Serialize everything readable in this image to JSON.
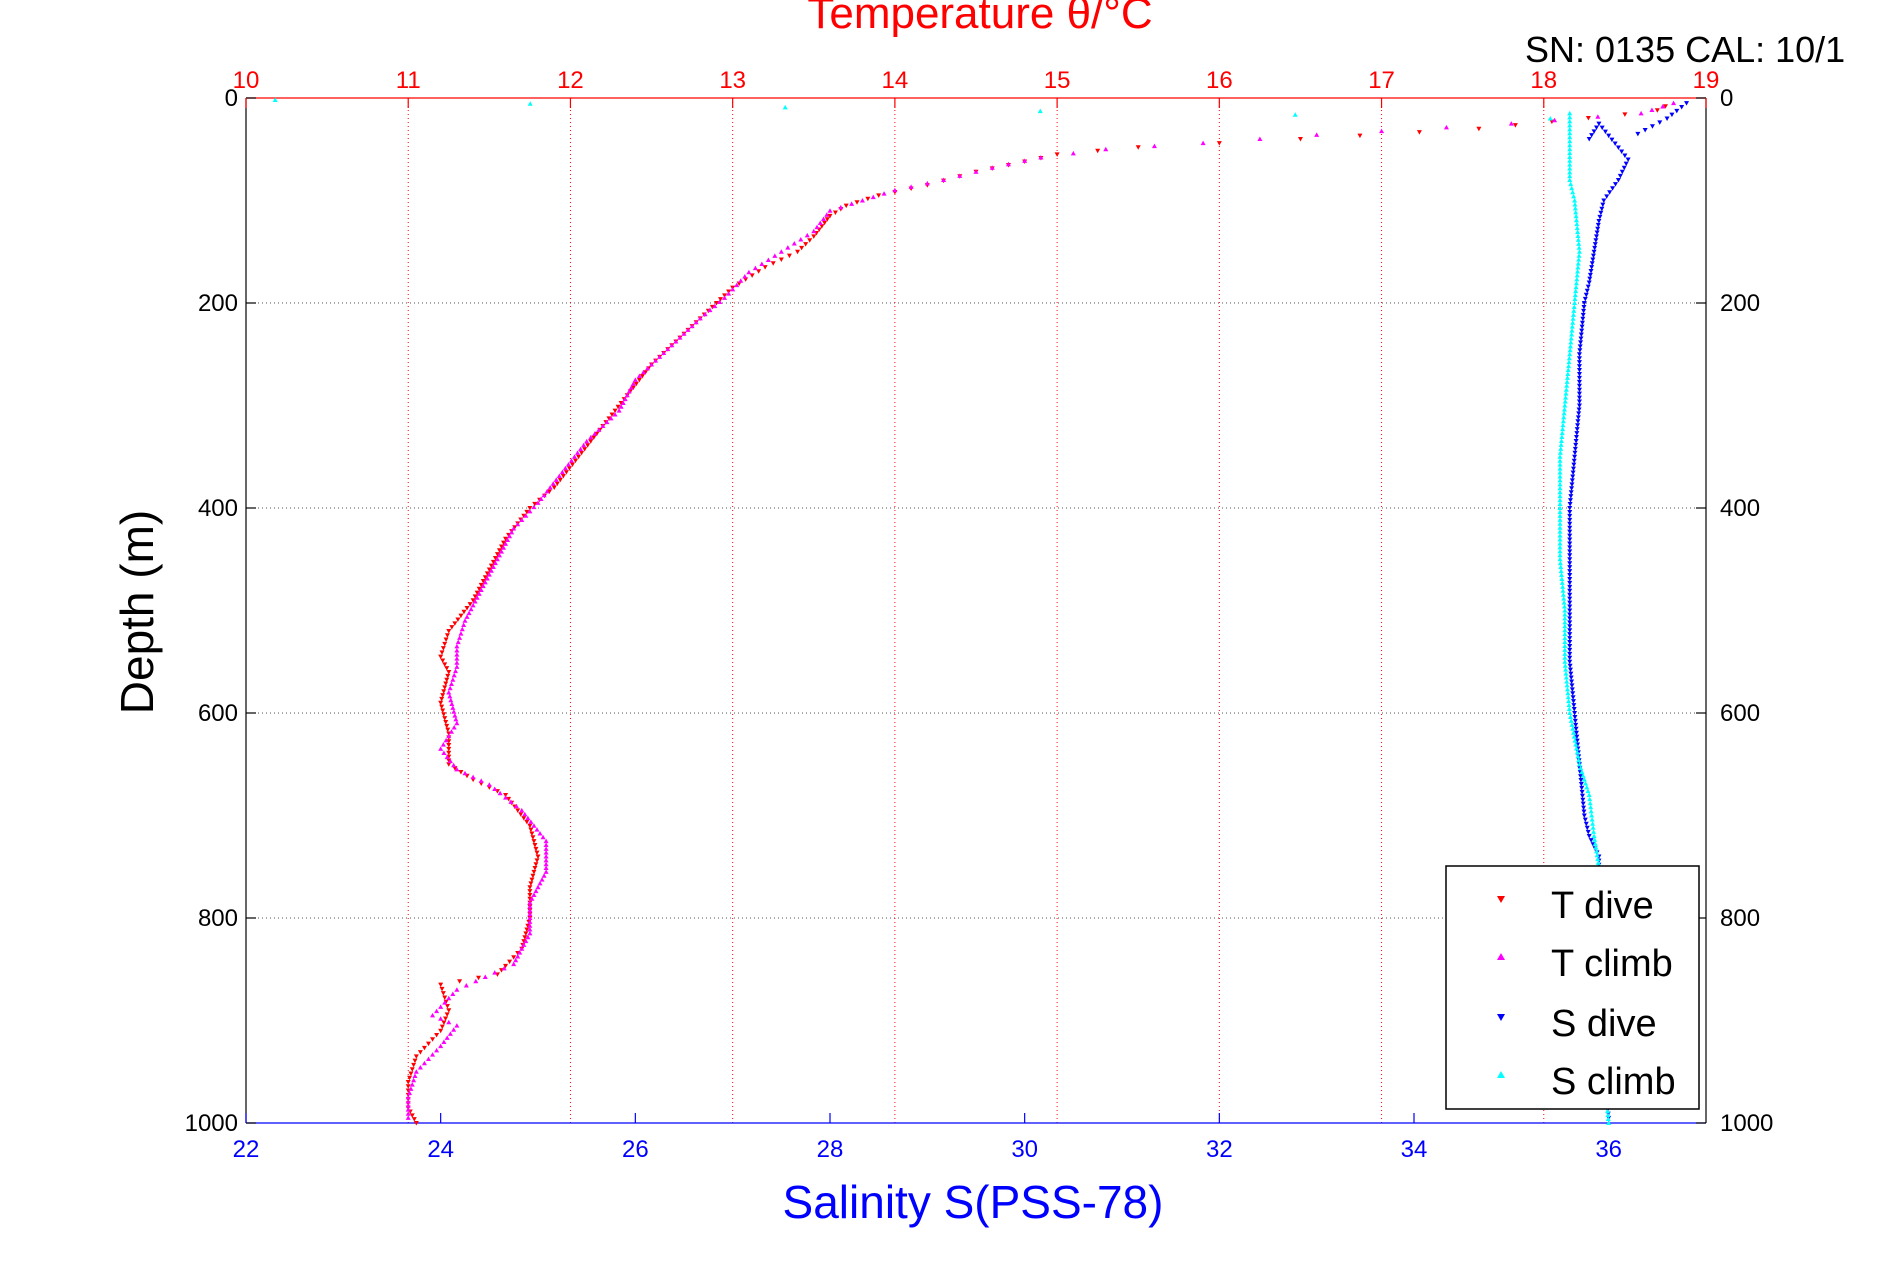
{
  "chart_data": {
    "type": "scatter",
    "title": "Temperature θ/°C",
    "corner_label": "SN: 0135  CAL: 10/1",
    "ylabel": "Depth (m)",
    "xlabel": "Salinity S(PSS-78)",
    "y_axis": {
      "min": 0,
      "max": 1000,
      "reversed": true,
      "ticks": [
        0,
        200,
        400,
        600,
        800,
        1000
      ],
      "tick_labels": [
        "0",
        "200",
        "400",
        "600",
        "800",
        "1000"
      ]
    },
    "temperature_axis": {
      "position": "top",
      "min": 10,
      "max": 19,
      "ticks": [
        10,
        11,
        12,
        13,
        14,
        15,
        16,
        17,
        18,
        19
      ],
      "tick_labels": [
        "10",
        "11",
        "12",
        "13",
        "14",
        "15",
        "16",
        "17",
        "18",
        "19"
      ],
      "grid": "vertical dotted",
      "color": "#ff0000"
    },
    "salinity_axis": {
      "position": "bottom",
      "min": 22,
      "max": 37,
      "ticks": [
        22,
        24,
        26,
        28,
        30,
        32,
        34,
        36
      ],
      "tick_labels": [
        "22",
        "24",
        "26",
        "28",
        "30",
        "32",
        "34",
        "36"
      ],
      "color": "#0000ff"
    },
    "grid": {
      "horizontal": true,
      "vertical": true
    },
    "legend": {
      "placement": "bottom-right",
      "entries": [
        {
          "label": "T dive",
          "color": "#ff0000",
          "marker": "down-triangle"
        },
        {
          "label": "T climb",
          "color": "#ff00ff",
          "marker": "up-triangle"
        },
        {
          "label": "S dive",
          "color": "#0000ff",
          "marker": "down-triangle"
        },
        {
          "label": "S climb",
          "color": "#00ffff",
          "marker": "up-triangle"
        }
      ]
    },
    "series": [
      {
        "name": "T dive",
        "axis": "temperature",
        "color": "#ff0000",
        "points": [
          [
            18.75,
            8
          ],
          [
            18.7,
            12
          ],
          [
            18.5,
            16
          ],
          [
            17.6,
            30
          ],
          [
            16.5,
            40
          ],
          [
            15.5,
            48
          ],
          [
            15.0,
            55
          ],
          [
            14.8,
            62
          ],
          [
            14.5,
            72
          ],
          [
            14.2,
            85
          ],
          [
            13.9,
            95
          ],
          [
            13.7,
            105
          ],
          [
            13.6,
            115
          ],
          [
            13.55,
            125
          ],
          [
            13.5,
            135
          ],
          [
            13.4,
            150
          ],
          [
            13.2,
            165
          ],
          [
            13.0,
            185
          ],
          [
            12.9,
            200
          ],
          [
            12.7,
            230
          ],
          [
            12.5,
            260
          ],
          [
            12.35,
            290
          ],
          [
            12.2,
            320
          ],
          [
            12.05,
            350
          ],
          [
            11.9,
            380
          ],
          [
            11.75,
            400
          ],
          [
            11.6,
            430
          ],
          [
            11.5,
            460
          ],
          [
            11.4,
            490
          ],
          [
            11.25,
            520
          ],
          [
            11.2,
            545
          ],
          [
            11.25,
            560
          ],
          [
            11.2,
            590
          ],
          [
            11.25,
            620
          ],
          [
            11.25,
            650
          ],
          [
            11.4,
            665
          ],
          [
            11.6,
            680
          ],
          [
            11.75,
            710
          ],
          [
            11.8,
            740
          ],
          [
            11.75,
            770
          ],
          [
            11.75,
            800
          ],
          [
            11.7,
            830
          ],
          [
            11.55,
            855
          ],
          [
            11.2,
            865
          ],
          [
            11.25,
            890
          ],
          [
            11.2,
            910
          ],
          [
            11.05,
            935
          ],
          [
            11.0,
            960
          ],
          [
            11.0,
            985
          ],
          [
            11.05,
            1000
          ]
        ]
      },
      {
        "name": "T climb",
        "axis": "temperature",
        "color": "#ff00ff",
        "points": [
          [
            18.8,
            5
          ],
          [
            18.6,
            15
          ],
          [
            17.8,
            25
          ],
          [
            16.6,
            36
          ],
          [
            15.9,
            44
          ],
          [
            15.3,
            50
          ],
          [
            14.9,
            58
          ],
          [
            14.6,
            68
          ],
          [
            14.3,
            80
          ],
          [
            14.0,
            90
          ],
          [
            13.8,
            100
          ],
          [
            13.6,
            110
          ],
          [
            13.5,
            130
          ],
          [
            13.3,
            150
          ],
          [
            13.1,
            170
          ],
          [
            12.95,
            195
          ],
          [
            12.8,
            215
          ],
          [
            12.6,
            245
          ],
          [
            12.4,
            275
          ],
          [
            12.3,
            305
          ],
          [
            12.1,
            335
          ],
          [
            11.95,
            365
          ],
          [
            11.8,
            395
          ],
          [
            11.65,
            420
          ],
          [
            11.55,
            450
          ],
          [
            11.45,
            480
          ],
          [
            11.35,
            510
          ],
          [
            11.3,
            535
          ],
          [
            11.3,
            555
          ],
          [
            11.25,
            580
          ],
          [
            11.3,
            610
          ],
          [
            11.2,
            635
          ],
          [
            11.3,
            655
          ],
          [
            11.5,
            670
          ],
          [
            11.7,
            695
          ],
          [
            11.85,
            725
          ],
          [
            11.85,
            755
          ],
          [
            11.75,
            785
          ],
          [
            11.75,
            815
          ],
          [
            11.65,
            845
          ],
          [
            11.3,
            870
          ],
          [
            11.15,
            895
          ],
          [
            11.3,
            905
          ],
          [
            11.2,
            925
          ],
          [
            11.05,
            950
          ],
          [
            11.0,
            975
          ],
          [
            11.0,
            995
          ]
        ]
      },
      {
        "name": "S dive",
        "axis": "salinity",
        "color": "#0000ff",
        "points": [
          [
            36.8,
            5
          ],
          [
            36.6,
            20
          ],
          [
            36.3,
            35
          ],
          [
            35.8,
            40
          ],
          [
            35.9,
            25
          ],
          [
            36.2,
            60
          ],
          [
            36.1,
            80
          ],
          [
            35.95,
            100
          ],
          [
            35.9,
            120
          ],
          [
            35.85,
            150
          ],
          [
            35.8,
            180
          ],
          [
            35.75,
            200
          ],
          [
            35.7,
            250
          ],
          [
            35.7,
            300
          ],
          [
            35.65,
            350
          ],
          [
            35.6,
            400
          ],
          [
            35.6,
            450
          ],
          [
            35.6,
            500
          ],
          [
            35.6,
            550
          ],
          [
            35.65,
            600
          ],
          [
            35.7,
            650
          ],
          [
            35.75,
            700
          ],
          [
            35.8,
            720
          ],
          [
            35.9,
            740
          ],
          [
            35.9,
            760
          ],
          [
            35.9,
            800
          ],
          [
            35.9,
            850
          ],
          [
            35.95,
            900
          ],
          [
            35.95,
            950
          ],
          [
            36.0,
            995
          ]
        ]
      },
      {
        "name": "S climb",
        "axis": "salinity",
        "color": "#00ffff",
        "points": [
          [
            22.3,
            2
          ],
          [
            35.4,
            20
          ],
          [
            35.6,
            15
          ],
          [
            35.6,
            50
          ],
          [
            35.6,
            80
          ],
          [
            35.65,
            100
          ],
          [
            35.7,
            150
          ],
          [
            35.65,
            200
          ],
          [
            35.6,
            250
          ],
          [
            35.55,
            300
          ],
          [
            35.5,
            350
          ],
          [
            35.5,
            400
          ],
          [
            35.5,
            450
          ],
          [
            35.55,
            500
          ],
          [
            35.55,
            550
          ],
          [
            35.6,
            600
          ],
          [
            35.7,
            650
          ],
          [
            35.8,
            680
          ],
          [
            35.85,
            720
          ],
          [
            35.9,
            750
          ],
          [
            35.9,
            800
          ],
          [
            35.9,
            850
          ],
          [
            35.95,
            900
          ],
          [
            35.95,
            950
          ],
          [
            36.0,
            1000
          ]
        ]
      }
    ]
  }
}
